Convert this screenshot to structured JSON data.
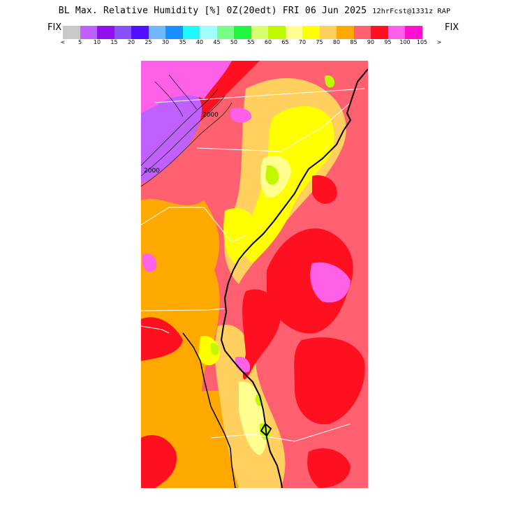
{
  "header": {
    "title_main": "BL Max. Relative Humidity [%] 0Z(20edt) FRI 06 Jun 2025",
    "title_fcst": "12hrFcst@1331z RAP"
  },
  "scale": {
    "fix_left": "FIX",
    "fix_right": "FIX",
    "colors": [
      "#c8c8c8",
      "#c060ff",
      "#9010f0",
      "#8850f8",
      "#5010ff",
      "#70b8ff",
      "#1890ff",
      "#20f8ff",
      "#a0fff8",
      "#78ff88",
      "#20f840",
      "#d8ff70",
      "#c0f800",
      "#ffff90",
      "#ffff00",
      "#ffd060",
      "#ffa800",
      "#ff6070",
      "#ff1020",
      "#ff60e8",
      "#ff10d0"
    ],
    "tick_labels": [
      "<",
      "5",
      "10",
      "15",
      "20",
      "25",
      "30",
      "35",
      "40",
      "45",
      "50",
      "55",
      "60",
      "65",
      "70",
      "75",
      "80",
      "85",
      "90",
      "95",
      "100",
      "105",
      ">"
    ]
  },
  "map": {
    "contour_labels": [
      "2000",
      "2000"
    ],
    "colors": {
      "pink": "#ff6070",
      "red": "#ff1020",
      "orange": "#ffa800",
      "light_orange": "#ffd060",
      "yellow": "#ffff00",
      "pale_yellow": "#ffff90",
      "lime": "#c0f800",
      "magenta": "#ff60e8",
      "purple": "#c060ff"
    }
  }
}
